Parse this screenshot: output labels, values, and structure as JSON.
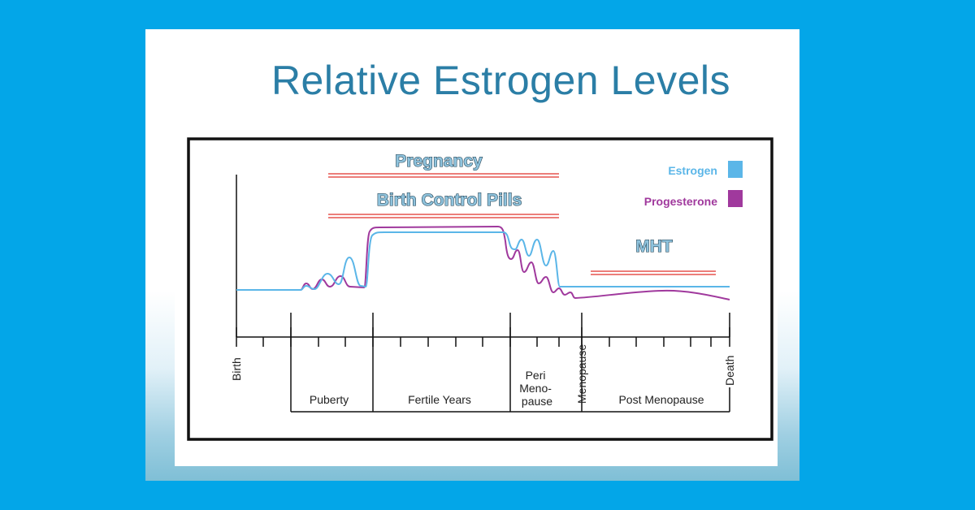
{
  "slide": {
    "title": "Relative Estrogen Levels"
  },
  "chart_data": {
    "type": "line",
    "title": "Relative Estrogen Levels",
    "xlabel": "",
    "ylabel": "",
    "x_ticks": [
      "Birth",
      "Menopause",
      "Death"
    ],
    "stages": [
      "Puberty",
      "Fertile Years",
      "Peri Meno- pause",
      "Post Menopause"
    ],
    "bar_labels": [
      "Pregnancy",
      "Birth Control Pills",
      "MHT"
    ],
    "legend": [
      {
        "name": "Estrogen",
        "color": "#5bb6e8"
      },
      {
        "name": "Progesterone",
        "color": "#a0399d"
      }
    ],
    "series": [
      {
        "name": "Estrogen",
        "color": "#5bb6e8"
      },
      {
        "name": "Progesterone",
        "color": "#a0399d"
      }
    ],
    "grid": false,
    "legend_position": "top-right"
  },
  "colors": {
    "background": "#03a6e8",
    "title": "#2b7ea6",
    "bar_line": "#e0302a"
  }
}
